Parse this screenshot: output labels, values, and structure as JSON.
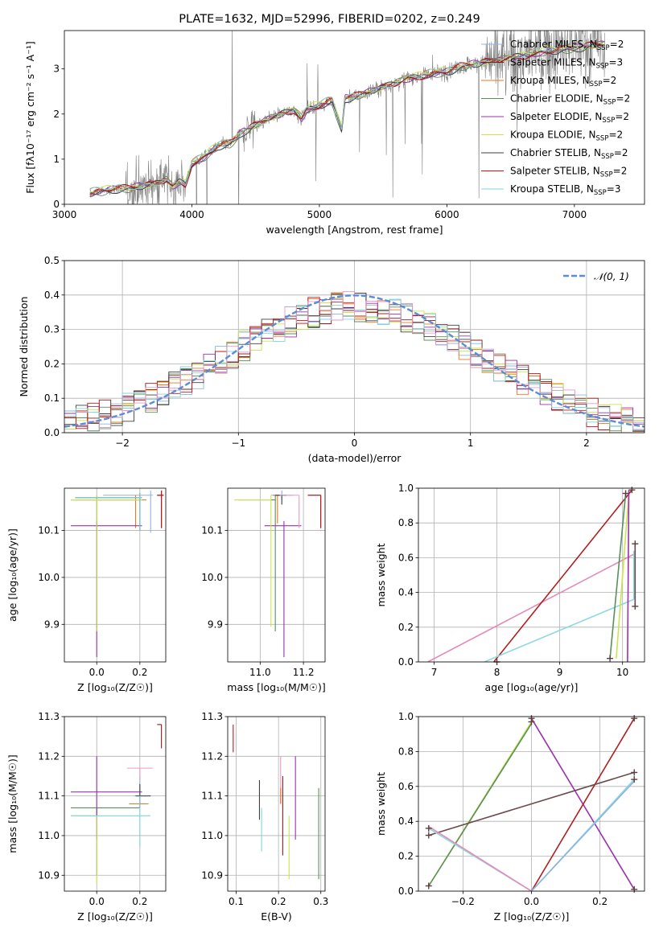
{
  "chart_data": [
    {
      "id": "spectrum",
      "type": "line",
      "title": "PLATE=1632, MJD=52996, FIBERID=0202, z=0.249",
      "xlabel": "wavelength [Angstrom, rest frame]",
      "ylabel": "Flux [fλ10⁻¹⁷ erg cm⁻² s⁻¹ A⁻¹]",
      "xlim": [
        3000,
        7550
      ],
      "ylim": [
        0,
        3.85
      ],
      "xticks": [
        3000,
        4000,
        5000,
        6000,
        7000
      ],
      "yticks": [
        0,
        1,
        2,
        3
      ],
      "legend_position": "upper-right",
      "legend": [
        {
          "label": "Chabrier MILES, N",
          "sub": "SSP",
          "suffix": "=2",
          "color": "#8eb4e0"
        },
        {
          "label": "Salpeter MILES, N",
          "sub": "SSP",
          "suffix": "=3",
          "color": "#8b1a1a"
        },
        {
          "label": "Kroupa MILES, N",
          "sub": "SSP",
          "suffix": "=2",
          "color": "#e87722"
        },
        {
          "label": "Chabrier ELODIE, N",
          "sub": "SSP",
          "suffix": "=2",
          "color": "#5a8f5a"
        },
        {
          "label": "Salpeter ELODIE, N",
          "sub": "SSP",
          "suffix": "=2",
          "color": "#9b30b0"
        },
        {
          "label": "Kroupa ELODIE, N",
          "sub": "SSP",
          "suffix": "=2",
          "color": "#c8e64c"
        },
        {
          "label": "Chabrier STELIB, N",
          "sub": "SSP",
          "suffix": "=2",
          "color": "#404040"
        },
        {
          "label": "Salpeter STELIB, N",
          "sub": "SSP",
          "suffix": "=2",
          "color": "#c0181e"
        },
        {
          "label": "Kroupa STELIB, N",
          "sub": "SSP",
          "suffix": "=3",
          "color": "#7fd6dc"
        }
      ],
      "spectrum_keypoints": {
        "x": [
          3200,
          3300,
          3400,
          3500,
          3600,
          3700,
          3800,
          3850,
          3900,
          3950,
          4000,
          4100,
          4200,
          4300,
          4400,
          4500,
          4600,
          4700,
          4800,
          4861,
          4900,
          5000,
          5100,
          5175,
          5200,
          5300,
          5400,
          5500,
          5600,
          5700,
          5800,
          5900,
          6000,
          6100,
          6200,
          6300,
          6400,
          6500,
          6600,
          6700,
          6800,
          6900,
          7000,
          7100,
          7200,
          7250
        ],
        "y": [
          0.25,
          0.3,
          0.35,
          0.35,
          0.4,
          0.45,
          0.55,
          0.4,
          0.5,
          0.45,
          0.9,
          1.05,
          1.3,
          1.35,
          1.6,
          1.75,
          1.9,
          2.0,
          2.1,
          1.9,
          2.1,
          2.2,
          2.3,
          1.65,
          2.35,
          2.4,
          2.5,
          2.6,
          2.7,
          2.8,
          2.85,
          2.9,
          2.95,
          3.05,
          3.1,
          3.15,
          3.2,
          3.25,
          3.3,
          3.35,
          3.4,
          3.45,
          3.45,
          3.5,
          3.55,
          3.55
        ]
      }
    },
    {
      "id": "residuals",
      "type": "histogram",
      "xlabel": "(data-model)/error",
      "ylabel": "Normed distribution",
      "xlim": [
        -2.5,
        2.5
      ],
      "ylim": [
        0,
        0.5
      ],
      "xticks": [
        -2,
        -1,
        0,
        1,
        2
      ],
      "yticks": [
        0.0,
        0.1,
        0.2,
        0.3,
        0.4,
        0.5
      ],
      "legend": [
        {
          "label": "𝒩(0, 1)",
          "color": "#5b8dd6",
          "style": "dashed"
        }
      ],
      "legend_position": "upper-right",
      "bin_width": 0.1
    },
    {
      "id": "age_vs_Z",
      "type": "errorbar",
      "xlabel": "Z [log₁₀(Z/Z☉)]",
      "ylabel": "age  [log₁₀(age/yr)]",
      "xlim": [
        -0.15,
        0.32
      ],
      "ylim": [
        9.82,
        10.19
      ],
      "xticks": [
        0.0,
        0.2
      ],
      "yticks": [
        9.9,
        10.0,
        10.1
      ],
      "points": [
        {
          "color": "#8eb4e0",
          "x": 0.25,
          "y": 10.175,
          "xerr": [
            0.22,
            0.01
          ],
          "yerr": [
            0.08,
            0.01
          ]
        },
        {
          "color": "#8b1a1a",
          "x": 0.3,
          "y": 10.175,
          "xerr": [
            0.02,
            0.01
          ],
          "yerr": [
            0.07,
            0.01
          ]
        },
        {
          "color": "#e87722",
          "x": 0.18,
          "y": 10.165,
          "xerr": [
            0.28,
            0.05
          ],
          "yerr": [
            0.06,
            0.01
          ]
        },
        {
          "color": "#5a8f5a",
          "x": 0.0,
          "y": 10.165,
          "xerr": [
            0.12,
            0.2
          ],
          "yerr": [
            0.28,
            0.01
          ]
        },
        {
          "color": "#9b30b0",
          "x": 0.0,
          "y": 10.11,
          "xerr": [
            0.12,
            0.21
          ],
          "yerr": [
            0.28,
            0.01
          ]
        },
        {
          "color": "#c8e64c",
          "x": 0.0,
          "y": 10.165,
          "xerr": [
            0.12,
            0.21
          ],
          "yerr": [
            0.28,
            0.01
          ]
        },
        {
          "color": "#404040",
          "x": 0.2,
          "y": 10.17,
          "xerr": [
            0.3,
            0.01
          ],
          "yerr": [
            0.07,
            0.01
          ]
        },
        {
          "color": "#c0181e",
          "x": 0.3,
          "y": 10.175,
          "xerr": [
            0.02,
            0.01
          ],
          "yerr": [
            0.07,
            0.01
          ]
        },
        {
          "color": "#7fd6dc",
          "x": 0.2,
          "y": 10.17,
          "xerr": [
            0.3,
            0.01
          ],
          "yerr": [
            0.07,
            0.01
          ]
        }
      ]
    },
    {
      "id": "age_vs_mass",
      "type": "errorbar",
      "xlabel": "mass [log₁₀(M/M☉)]",
      "ylabel": "",
      "xlim": [
        10.85,
        11.3
      ],
      "ylim": [
        9.82,
        10.19
      ],
      "xticks": [
        11.0,
        11.2
      ],
      "yticks": [
        9.9,
        10.0,
        10.1
      ],
      "points": [
        {
          "color": "#8eb4e0",
          "x": 11.1,
          "y": 10.175,
          "xerr": [
            0.05,
            0.05
          ],
          "yerr": [
            0.01,
            0.01
          ]
        },
        {
          "color": "#8b1a1a",
          "x": 11.28,
          "y": 10.175,
          "xerr": [
            0.06,
            0.0
          ],
          "yerr": [
            0.07,
            0.0
          ]
        },
        {
          "color": "#e87722",
          "x": 11.08,
          "y": 10.175,
          "xerr": [
            0.02,
            0.02
          ],
          "yerr": [
            0.06,
            0.0
          ]
        },
        {
          "color": "#5a8f5a",
          "x": 11.07,
          "y": 10.165,
          "xerr": [
            0.17,
            0.0
          ],
          "yerr": [
            0.28,
            0.01
          ]
        },
        {
          "color": "#9b30b0",
          "x": 11.11,
          "y": 10.11,
          "xerr": [
            0.09,
            0.08
          ],
          "yerr": [
            0.28,
            0.01
          ]
        },
        {
          "color": "#c8e64c",
          "x": 11.05,
          "y": 10.165,
          "xerr": [
            0.17,
            0.0
          ],
          "yerr": [
            0.27,
            0.01
          ]
        },
        {
          "color": "#404040",
          "x": 11.1,
          "y": 10.175,
          "xerr": [
            0.03,
            0.02
          ],
          "yerr": [
            0.02,
            0.0
          ]
        },
        {
          "color": "#c0181e",
          "x": 11.28,
          "y": 10.175,
          "xerr": [
            0.06,
            0.0
          ],
          "yerr": [
            0.07,
            0.0
          ]
        },
        {
          "color": "#e69ac7",
          "x": 11.18,
          "y": 10.175,
          "xerr": [
            0.09,
            0.0
          ],
          "yerr": [
            0.07,
            0.0
          ]
        }
      ]
    },
    {
      "id": "weight_vs_age",
      "type": "line",
      "xlabel": "age  [log₁₀(age/yr)]",
      "ylabel": "mass weight",
      "xlim": [
        6.75,
        10.35
      ],
      "ylim": [
        0,
        1
      ],
      "xticks": [
        7,
        8,
        9,
        10
      ],
      "yticks": [
        0.0,
        0.2,
        0.4,
        0.6,
        0.8,
        1.0
      ],
      "series": [
        {
          "color": "#e68ab9",
          "x": [
            6.9,
            10.18
          ],
          "y": [
            0.0,
            0.62
          ]
        },
        {
          "color": "#b01f1f",
          "x": [
            7.95,
            10.15
          ],
          "y": [
            0.0,
            0.99
          ]
        },
        {
          "color": "#8dd9e0",
          "x": [
            7.8,
            10.18
          ],
          "y": [
            0.0,
            0.36
          ]
        },
        {
          "color": "#8dd9e0",
          "x": [
            10.18,
            10.18
          ],
          "y": [
            0.36,
            0.64
          ]
        },
        {
          "color": "#5a8f5a",
          "x": [
            9.8,
            10.05
          ],
          "y": [
            0.02,
            0.97
          ]
        },
        {
          "color": "#c8e64c",
          "x": [
            9.9,
            10.1
          ],
          "y": [
            0.02,
            0.97
          ]
        },
        {
          "color": "#9b30b0",
          "x": [
            10.08,
            10.1
          ],
          "y": [
            0.0,
            0.99
          ]
        },
        {
          "color": "#6b4a4a",
          "x": [
            10.2,
            10.2
          ],
          "y": [
            0.32,
            0.68
          ]
        }
      ],
      "markers": [
        {
          "x": 10.15,
          "y": 0.99
        },
        {
          "x": 10.2,
          "y": 0.68
        },
        {
          "x": 10.2,
          "y": 0.32
        },
        {
          "x": 9.8,
          "y": 0.02
        },
        {
          "x": 10.05,
          "y": 0.97
        },
        {
          "x": 8.0,
          "y": 0.0
        }
      ]
    },
    {
      "id": "mass_vs_Z",
      "type": "errorbar",
      "xlabel": "Z [log₁₀(Z/Z☉)]",
      "ylabel": "mass [log₁₀(M/M☉)]",
      "xlim": [
        -0.15,
        0.32
      ],
      "ylim": [
        10.86,
        11.3
      ],
      "xticks": [
        0.0,
        0.2
      ],
      "yticks": [
        10.9,
        11.0,
        11.1,
        11.2,
        11.3
      ],
      "points": [
        {
          "color": "#8eb4e0",
          "x": 0.2,
          "y": 11.1,
          "xerr": [
            0.03,
            0.05
          ],
          "yerr": [
            0.02,
            0.05
          ]
        },
        {
          "color": "#8b1a1a",
          "x": 0.3,
          "y": 11.28,
          "xerr": [
            0.02,
            0.0
          ],
          "yerr": [
            0.06,
            0.0
          ]
        },
        {
          "color": "#e87722",
          "x": 0.18,
          "y": 11.08,
          "xerr": [
            0.03,
            0.06
          ],
          "yerr": [
            0.0,
            0.0
          ]
        },
        {
          "color": "#5a8f5a",
          "x": 0.0,
          "y": 11.07,
          "xerr": [
            0.12,
            0.2
          ],
          "yerr": [
            0.17,
            0.0
          ]
        },
        {
          "color": "#9b30b0",
          "x": 0.0,
          "y": 11.11,
          "xerr": [
            0.12,
            0.21
          ],
          "yerr": [
            0.12,
            0.09
          ]
        },
        {
          "color": "#c8e64c",
          "x": 0.0,
          "y": 11.05,
          "xerr": [
            0.12,
            0.0
          ],
          "yerr": [
            0.17,
            0.0
          ]
        },
        {
          "color": "#404040",
          "x": 0.2,
          "y": 11.1,
          "xerr": [
            0.02,
            0.05
          ],
          "yerr": [
            0.03,
            0.03
          ]
        },
        {
          "color": "#e69ac7",
          "x": 0.2,
          "y": 11.17,
          "xerr": [
            0.06,
            0.06
          ],
          "yerr": [
            0.03,
            0.0
          ]
        },
        {
          "color": "#7fd6dc",
          "x": 0.2,
          "y": 11.05,
          "xerr": [
            0.32,
            0.05
          ],
          "yerr": [
            0.08,
            0.05
          ]
        }
      ]
    },
    {
      "id": "mass_vs_ebv",
      "type": "errorbar",
      "xlabel": "E(B-V)",
      "ylabel": "",
      "xlim": [
        0.08,
        0.31
      ],
      "ylim": [
        10.86,
        11.3
      ],
      "xticks": [
        0.1,
        0.2,
        0.3
      ],
      "yticks": [
        10.9,
        11.0,
        11.1,
        11.2,
        11.3
      ],
      "points": [
        {
          "color": "#c0181e",
          "x": 0.093,
          "y": 11.25,
          "yerr": [
            0.04,
            0.03
          ]
        },
        {
          "color": "#404040",
          "x": 0.155,
          "y": 11.09,
          "yerr": [
            0.05,
            0.05
          ]
        },
        {
          "color": "#7fd6dc",
          "x": 0.16,
          "y": 11.02,
          "yerr": [
            0.06,
            0.05
          ]
        },
        {
          "color": "#e69ac7",
          "x": 0.205,
          "y": 11.14,
          "yerr": [
            0.06,
            0.06
          ]
        },
        {
          "color": "#e87722",
          "x": 0.205,
          "y": 11.1,
          "yerr": [
            0.02,
            0.02
          ]
        },
        {
          "color": "#8b1a1a",
          "x": 0.21,
          "y": 11.05,
          "yerr": [
            0.1,
            0.1
          ]
        },
        {
          "color": "#c8e64c",
          "x": 0.225,
          "y": 10.97,
          "yerr": [
            0.08,
            0.08
          ]
        },
        {
          "color": "#9b30b0",
          "x": 0.24,
          "y": 11.09,
          "yerr": [
            0.1,
            0.11
          ]
        },
        {
          "color": "#5a8f5a",
          "x": 0.295,
          "y": 11.0,
          "yerr": [
            0.11,
            0.12
          ]
        }
      ]
    },
    {
      "id": "weight_vs_Z",
      "type": "line",
      "xlabel": "Z [log₁₀(Z/Z☉)]",
      "ylabel": "mass weight",
      "xlim": [
        -0.33,
        0.33
      ],
      "ylim": [
        0,
        1
      ],
      "xticks": [
        -0.2,
        0.0,
        0.2
      ],
      "yticks": [
        0.0,
        0.2,
        0.4,
        0.6,
        0.8,
        1.0
      ],
      "series": [
        {
          "color": "#c8e64c",
          "x": [
            -0.3,
            0.0
          ],
          "y": [
            0.03,
            0.97
          ]
        },
        {
          "color": "#5a8f5a",
          "x": [
            -0.3,
            0.0
          ],
          "y": [
            0.03,
            0.96
          ]
        },
        {
          "color": "#9b30b0",
          "x": [
            0.0,
            0.3
          ],
          "y": [
            0.99,
            0.01
          ]
        },
        {
          "color": "#b01f1f",
          "x": [
            0.0,
            0.3
          ],
          "y": [
            0.0,
            0.99
          ]
        },
        {
          "color": "#6b4a4a",
          "x": [
            -0.3,
            0.3
          ],
          "y": [
            0.32,
            0.68
          ]
        },
        {
          "color": "#8dd9e0",
          "x": [
            -0.3,
            0.0
          ],
          "y": [
            0.36,
            0.0
          ]
        },
        {
          "color": "#8dd9e0",
          "x": [
            0.0,
            0.3
          ],
          "y": [
            0.0,
            0.64
          ]
        },
        {
          "color": "#e68ab9",
          "x": [
            -0.3,
            0.0
          ],
          "y": [
            0.37,
            0.0
          ]
        },
        {
          "color": "#8eb4e0",
          "x": [
            0.0,
            0.3
          ],
          "y": [
            0.0,
            0.63
          ]
        }
      ],
      "markers": [
        {
          "x": -0.3,
          "y": 0.03
        },
        {
          "x": 0.0,
          "y": 0.97
        },
        {
          "x": 0.0,
          "y": 0.99
        },
        {
          "x": 0.3,
          "y": 0.01
        },
        {
          "x": 0.3,
          "y": 0.99
        },
        {
          "x": -0.3,
          "y": 0.32
        },
        {
          "x": 0.3,
          "y": 0.68
        },
        {
          "x": -0.3,
          "y": 0.36
        },
        {
          "x": 0.3,
          "y": 0.64
        }
      ]
    }
  ]
}
